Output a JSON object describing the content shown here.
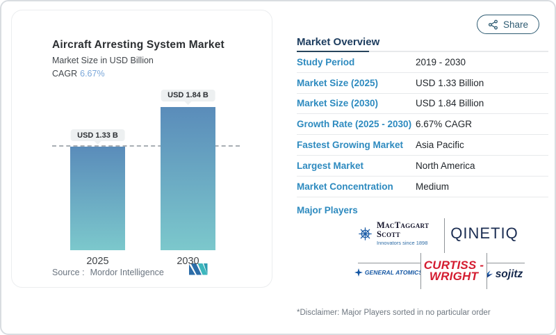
{
  "share": {
    "label": "Share"
  },
  "chart_data": {
    "type": "bar",
    "title": "Aircraft Arresting System Market",
    "subtitle": "Market Size in USD Billion",
    "cagr_label": "CAGR",
    "cagr_value": "6.67%",
    "categories": [
      "2025",
      "2030"
    ],
    "values": [
      1.33,
      1.84
    ],
    "value_labels": [
      "USD 1.33 B",
      "USD 1.84 B"
    ],
    "ylim": [
      0,
      2.05
    ],
    "dashed_line_value": 1.33,
    "bar_color_top": "#5a8cba",
    "bar_color_bottom": "#7cc8cc",
    "source_label": "Source :",
    "source_value": "Mordor Intelligence"
  },
  "overview": {
    "title": "Market Overview",
    "rows": [
      {
        "label": "Study Period",
        "value": "2019 - 2030"
      },
      {
        "label": "Market Size (2025)",
        "value": "USD 1.33 Billion"
      },
      {
        "label": "Market Size (2030)",
        "value": "USD 1.84 Billion"
      },
      {
        "label": "Growth Rate (2025 - 2030)",
        "value": "6.67% CAGR"
      },
      {
        "label": "Fastest Growing Market",
        "value": "Asia Pacific"
      },
      {
        "label": "Largest Market",
        "value": "North America"
      },
      {
        "label": "Market Concentration",
        "value": "Medium"
      }
    ],
    "major_players_label": "Major Players",
    "disclaimer": "*Disclaimer: Major Players sorted in no particular order"
  },
  "players": {
    "mactaggart_name": "MacTaggart Scott",
    "mactaggart_tagline": "Innovators since 1898",
    "qinetiq": "QINETIQ",
    "general_atomics": "GENERAL ATOMICS",
    "curtiss_line1": "CURTISS -",
    "curtiss_line2": "WRIGHT",
    "sojitz": "sojitz"
  },
  "colors": {
    "accent_label_blue": "#2d8abf",
    "heading_navy": "#1c3c5e",
    "share_teal": "#2e5b72",
    "cagr_blue": "#7aa7d9",
    "curtiss_red": "#d41c30",
    "mordor_blue": "#2c6da8",
    "mordor_teal": "#3cb6bc"
  }
}
